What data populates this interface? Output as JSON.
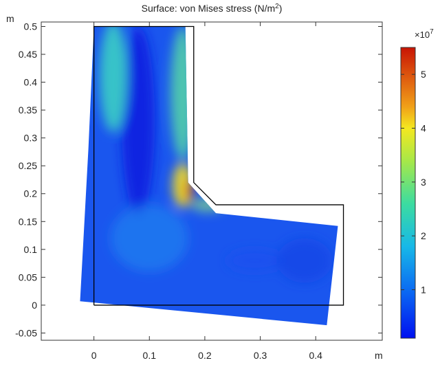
{
  "chart_data": {
    "type": "heatmap",
    "title_prefix": "Surface: von Mises stress (N/m",
    "title_sup": "2",
    "title_suffix": ")",
    "xlabel": "m",
    "ylabel": "m",
    "xlim": [
      -0.095,
      0.52
    ],
    "ylim": [
      -0.063,
      0.508
    ],
    "x_ticks": [
      {
        "v": 0,
        "label": "0"
      },
      {
        "v": 0.1,
        "label": "0.1"
      },
      {
        "v": 0.2,
        "label": "0.2"
      },
      {
        "v": 0.3,
        "label": "0.3"
      },
      {
        "v": 0.4,
        "label": "0.4"
      }
    ],
    "y_ticks": [
      {
        "v": 0.5,
        "label": "0.5"
      },
      {
        "v": 0.45,
        "label": "0.45"
      },
      {
        "v": 0.4,
        "label": "0.4"
      },
      {
        "v": 0.35,
        "label": "0.35"
      },
      {
        "v": 0.3,
        "label": "0.3"
      },
      {
        "v": 0.25,
        "label": "0.25"
      },
      {
        "v": 0.2,
        "label": "0.2"
      },
      {
        "v": 0.15,
        "label": "0.15"
      },
      {
        "v": 0.1,
        "label": "0.1"
      },
      {
        "v": 0.05,
        "label": "0.05"
      },
      {
        "v": 0,
        "label": "0"
      },
      {
        "v": -0.05,
        "label": "-0.05"
      }
    ],
    "undeformed_outline": [
      [
        0,
        0
      ],
      [
        0.45,
        0
      ],
      [
        0.45,
        0.18
      ],
      [
        0.22,
        0.18
      ],
      [
        0.18,
        0.22
      ],
      [
        0.18,
        0.5
      ],
      [
        0,
        0.5
      ]
    ],
    "deformed_shape": [
      [
        -0.025,
        0.007
      ],
      [
        0.42,
        -0.036
      ],
      [
        0.44,
        0.142
      ],
      [
        0.22,
        0.165
      ],
      [
        0.17,
        0.22
      ],
      [
        0.165,
        0.5
      ],
      [
        0,
        0.5
      ],
      [
        -0.01,
        0.28
      ]
    ],
    "hotspots": [
      {
        "x": 0.08,
        "y": 0.33,
        "rx": 0.03,
        "ry": 0.17,
        "color": "#0a1ee0",
        "opacity": 0.9
      },
      {
        "x": 0.29,
        "y": 0.08,
        "rx": 0.05,
        "ry": 0.02,
        "color": "#1a4ef0",
        "opacity": 0.7
      },
      {
        "x": 0.035,
        "y": 0.41,
        "rx": 0.025,
        "ry": 0.1,
        "color": "#3cd6c2",
        "opacity": 0.85
      },
      {
        "x": 0.16,
        "y": 0.38,
        "rx": 0.022,
        "ry": 0.12,
        "color": "#5be0a0",
        "opacity": 0.8
      },
      {
        "x": 0.16,
        "y": 0.215,
        "rx": 0.018,
        "ry": 0.04,
        "color": "#f8e020",
        "opacity": 0.9
      },
      {
        "x": 0.172,
        "y": 0.205,
        "rx": 0.006,
        "ry": 0.022,
        "color": "#e03010",
        "opacity": 0.95
      },
      {
        "x": 0.205,
        "y": 0.18,
        "rx": 0.03,
        "ry": 0.012,
        "color": "#8ee080",
        "opacity": 0.75
      },
      {
        "x": 0.1,
        "y": 0.12,
        "rx": 0.07,
        "ry": 0.06,
        "color": "#1f8df0",
        "opacity": 0.55
      },
      {
        "x": 0.38,
        "y": 0.08,
        "rx": 0.05,
        "ry": 0.04,
        "color": "#0d3fe4",
        "opacity": 0.6
      }
    ],
    "colorbar": {
      "exponent_label": "×10",
      "exponent_sup": "7",
      "min": 0.1,
      "max": 5.5,
      "ticks": [
        {
          "v": 1,
          "label": "1"
        },
        {
          "v": 2,
          "label": "2"
        },
        {
          "v": 3,
          "label": "3"
        },
        {
          "v": 4,
          "label": "4"
        },
        {
          "v": 5,
          "label": "5"
        }
      ],
      "stops": [
        {
          "v": 0.1,
          "color": "#0010f0"
        },
        {
          "v": 1.0,
          "color": "#0b6cf2"
        },
        {
          "v": 1.8,
          "color": "#17b8e8"
        },
        {
          "v": 2.6,
          "color": "#3cdca0"
        },
        {
          "v": 3.4,
          "color": "#a8e848"
        },
        {
          "v": 4.0,
          "color": "#f4e820"
        },
        {
          "v": 4.4,
          "color": "#f0a018"
        },
        {
          "v": 4.9,
          "color": "#e06010"
        },
        {
          "v": 5.5,
          "color": "#c81404"
        }
      ]
    },
    "colors": {
      "frame": "#333333",
      "grid": "#dddddd",
      "outline": "#000000"
    }
  }
}
